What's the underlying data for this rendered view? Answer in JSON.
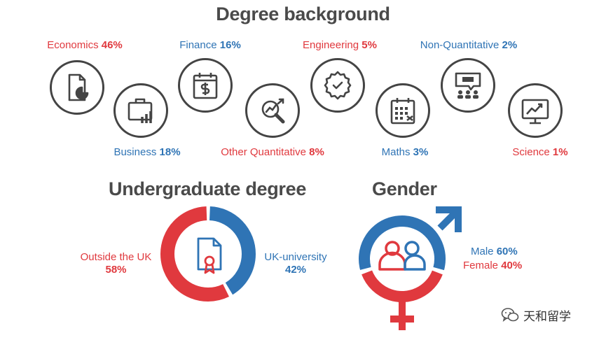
{
  "colors": {
    "red": "#e0393e",
    "blue": "#2f74b5",
    "icon": "#444444",
    "title": "#4a4a4a"
  },
  "titles": {
    "degree": "Degree background",
    "undergraduate": "Undergraduate degree",
    "gender": "Gender"
  },
  "degrees": [
    {
      "name": "Economics",
      "pct": "46%",
      "color": "red",
      "icon": "report-icon"
    },
    {
      "name": "Business",
      "pct": "18%",
      "color": "blue",
      "icon": "briefcase-chart-icon"
    },
    {
      "name": "Finance",
      "pct": "16%",
      "color": "blue",
      "icon": "calendar-dollar-icon"
    },
    {
      "name": "Other Quantitative",
      "pct": "8%",
      "color": "red",
      "icon": "magnifier-chart-icon"
    },
    {
      "name": "Engineering",
      "pct": "5%",
      "color": "red",
      "icon": "gear-icon"
    },
    {
      "name": "Maths",
      "pct": "3%",
      "color": "blue",
      "icon": "calendar-grid-icon"
    },
    {
      "name": "Non-Quantitative",
      "pct": "2%",
      "color": "blue",
      "icon": "presentation-icon"
    },
    {
      "name": "Science",
      "pct": "1%",
      "color": "red",
      "icon": "monitor-chart-icon"
    }
  ],
  "undergraduate": {
    "outside": {
      "label": "Outside the UK",
      "pct": "58%"
    },
    "uk": {
      "label": "UK-university",
      "pct": "42%"
    }
  },
  "gender": {
    "male": {
      "label": "Male",
      "pct": "60%"
    },
    "female": {
      "label": "Female",
      "pct": "40%"
    }
  },
  "watermark": {
    "text": "天和留学",
    "icon": "wechat-icon"
  },
  "chart_data": [
    {
      "type": "table",
      "title": "Degree background",
      "categories": [
        "Economics",
        "Business",
        "Finance",
        "Other Quantitative",
        "Engineering",
        "Maths",
        "Non-Quantitative",
        "Science"
      ],
      "values": [
        46,
        18,
        16,
        8,
        5,
        3,
        2,
        1
      ]
    },
    {
      "type": "pie",
      "title": "Undergraduate degree",
      "categories": [
        "Outside the UK",
        "UK-university"
      ],
      "values": [
        58,
        42
      ]
    },
    {
      "type": "pie",
      "title": "Gender",
      "categories": [
        "Male",
        "Female"
      ],
      "values": [
        60,
        40
      ]
    }
  ]
}
